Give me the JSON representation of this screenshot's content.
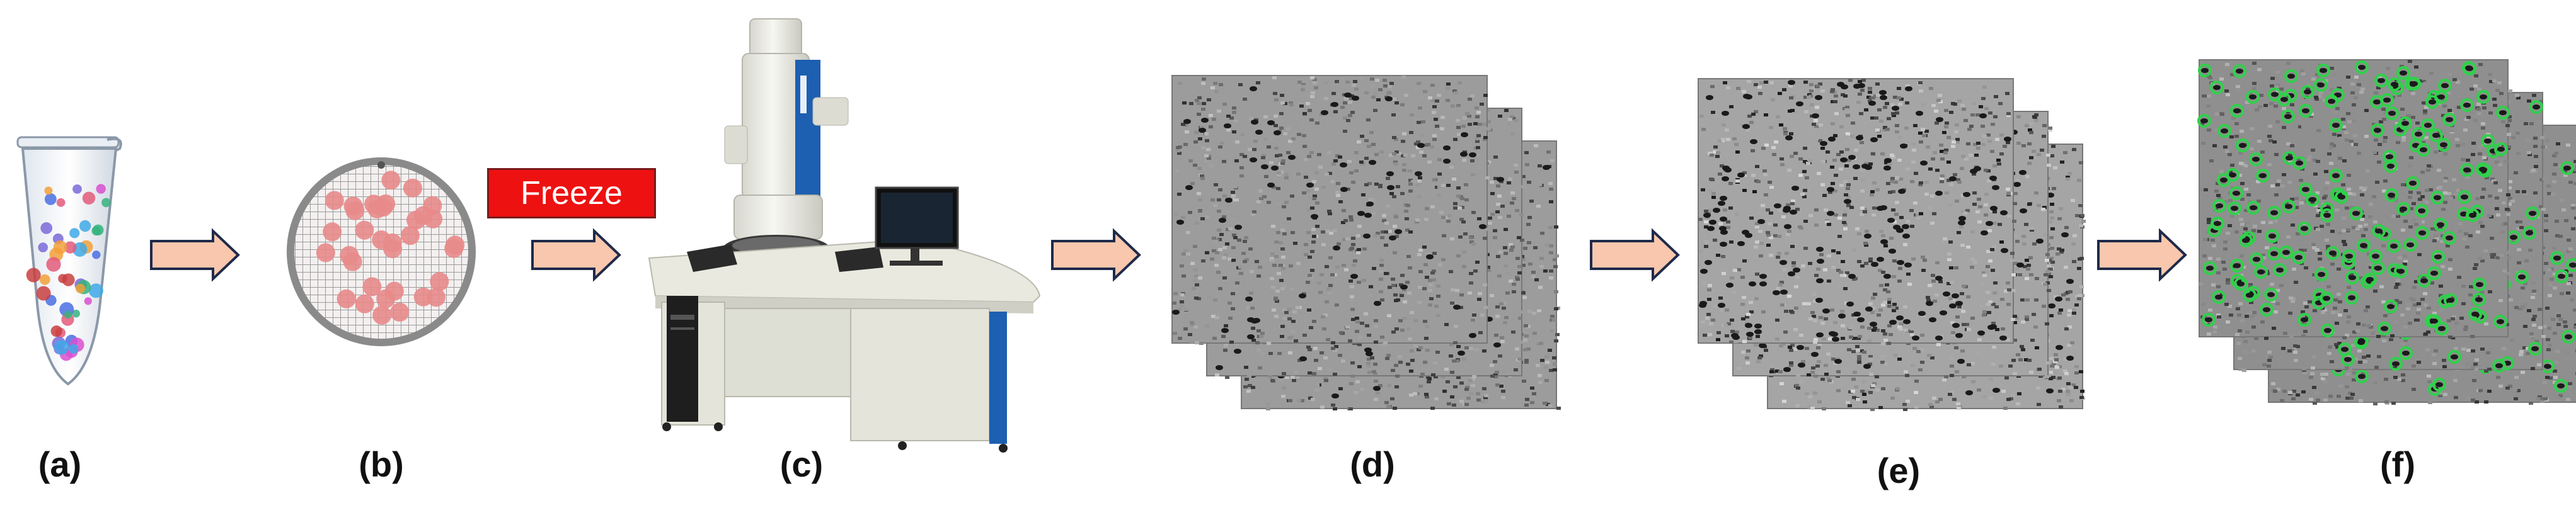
{
  "freeze_label": "Freeze",
  "step_labels": [
    "(a)",
    "(b)",
    "(c)",
    "(d)",
    "(e)",
    "(f)"
  ],
  "colors": {
    "arrow_fill": "#f8c7ad",
    "arrow_stroke": "#1f2a4a",
    "freeze_box": "#ee1111",
    "grid_disk": "#8a8a8a",
    "particle_fill": "#e88a8a",
    "picked_particle": "#2fd14a",
    "microscope_body": "#e9e9df",
    "microscope_accent": "#1d5fb0"
  },
  "icons": [
    "sample-tube-icon",
    "grid-icon",
    "electron-microscope-icon",
    "micrograph-stack-icon",
    "denoised-micrograph-stack-icon",
    "picked-particles-stack-icon"
  ]
}
